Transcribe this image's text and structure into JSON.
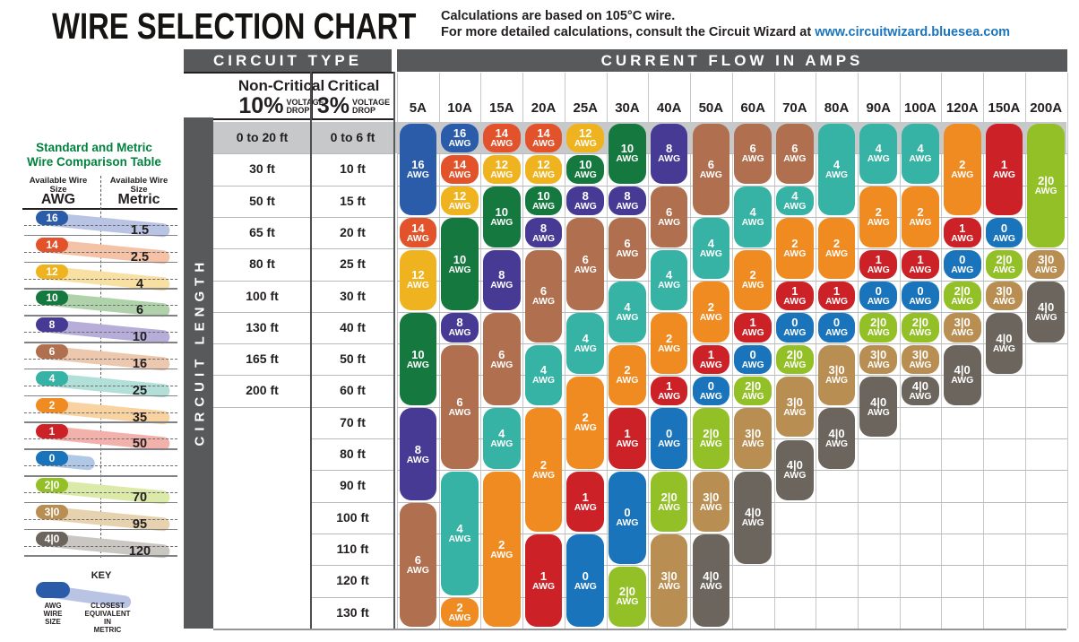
{
  "header": {
    "title": "WIRE SELECTION CHART",
    "subtitle_line1": "Calculations are based on 105°C wire.",
    "subtitle_line2_prefix": "For more detailed calculations, consult the Circuit Wizard at ",
    "subtitle_link": "www.circuitwizard.bluesea.com"
  },
  "sidebar": {
    "title_line1": "Standard and Metric",
    "title_line2": "Wire Comparison Table",
    "col1_header": "Available Wire Size",
    "col1_unit": "AWG",
    "col2_header": "Available Wire Size",
    "col2_unit": "Metric",
    "rows": [
      {
        "awg": "16",
        "metric": "1.5"
      },
      {
        "awg": "14",
        "metric": "2.5"
      },
      {
        "awg": "12",
        "metric": "4"
      },
      {
        "awg": "10",
        "metric": "6"
      },
      {
        "awg": "8",
        "metric": "10"
      },
      {
        "awg": "6",
        "metric": "16"
      },
      {
        "awg": "4",
        "metric": "25"
      },
      {
        "awg": "2",
        "metric": "35"
      },
      {
        "awg": "1",
        "metric": "50"
      },
      {
        "awg": "0",
        "metric": ""
      },
      {
        "awg": "2|0",
        "metric": "70"
      },
      {
        "awg": "3|0",
        "metric": "95"
      },
      {
        "awg": "4|0",
        "metric": "120"
      }
    ],
    "key": {
      "title": "KEY",
      "awg_label": "AWG WIRE SIZE",
      "metric_label": "CLOSEST EQUIVALENT IN METRIC"
    }
  },
  "table": {
    "circuit_type_header": "CIRCUIT TYPE",
    "current_flow_header": "CURRENT FLOW IN AMPS",
    "circuit_length_label": "CIRCUIT LENGTH",
    "non_critical": {
      "name": "Non-Critical",
      "percent": "10%",
      "drop_line1": "VOLTAGE",
      "drop_line2": "DROP"
    },
    "critical": {
      "name": "Critical",
      "percent": "3%",
      "drop_line1": "VOLTAGE",
      "drop_line2": "DROP"
    }
  },
  "colors": {
    "header_bar": "#58595b",
    "row1_band": "#c7c8ca",
    "link": "#1b75bc",
    "sidebar_title": "#00833e",
    "gauges": {
      "16": "#2a5caa",
      "14": "#e2532b",
      "12": "#efb320",
      "10": "#15793f",
      "8": "#473a94",
      "6": "#b06f4e",
      "4": "#36b3a4",
      "2": "#f08b21",
      "1": "#cd2128",
      "0": "#1a74bb",
      "2|0": "#93bf27",
      "3|0": "#b98e52",
      "4|0": "#6c655d"
    },
    "bands": {
      "16": "#b9c3e3",
      "14": "#f4c2a7",
      "12": "#f8dfa2",
      "10": "#afd2ab",
      "8": "#b6add8",
      "6": "#ecc8ae",
      "4": "#b2e0d8",
      "2": "#f9d2a2",
      "1": "#f2b2ab",
      "0": "#b0c8e6",
      "2|0": "#dbe9a9",
      "3|0": "#e6d2ae",
      "4|0": "#cac6c2"
    }
  },
  "chart_data": {
    "type": "table",
    "title": "Wire Selection Chart",
    "x_axis": "Current Flow in Amps",
    "y_axis": "Circuit Length",
    "cell_label_suffix": "AWG",
    "columns_amps": [
      "5A",
      "10A",
      "15A",
      "20A",
      "25A",
      "30A",
      "40A",
      "50A",
      "60A",
      "70A",
      "80A",
      "90A",
      "100A",
      "120A",
      "150A",
      "200A"
    ],
    "row_labels_non_critical_10pct": [
      "0 to 20 ft",
      "30 ft",
      "50 ft",
      "65 ft",
      "80 ft",
      "100 ft",
      "130 ft",
      "165 ft",
      "200 ft",
      "",
      "",
      "",
      "",
      "",
      "",
      ""
    ],
    "row_labels_critical_3pct": [
      "0 to 6 ft",
      "10 ft",
      "15 ft",
      "20 ft",
      "25 ft",
      "30 ft",
      "40 ft",
      "50 ft",
      "60 ft",
      "70 ft",
      "80 ft",
      "90 ft",
      "100 ft",
      "110 ft",
      "120 ft",
      "130 ft"
    ],
    "wire_gauge_spans_by_amp": {
      "5A": [
        {
          "awg": "16",
          "row_start": 1,
          "row_end": 3
        },
        {
          "awg": "14",
          "row_start": 4,
          "row_end": 4
        },
        {
          "awg": "12",
          "row_start": 5,
          "row_end": 6
        },
        {
          "awg": "10",
          "row_start": 7,
          "row_end": 9
        },
        {
          "awg": "8",
          "row_start": 10,
          "row_end": 12
        },
        {
          "awg": "6",
          "row_start": 13,
          "row_end": 16
        }
      ],
      "10A": [
        {
          "awg": "16",
          "row_start": 1,
          "row_end": 1
        },
        {
          "awg": "14",
          "row_start": 2,
          "row_end": 2
        },
        {
          "awg": "12",
          "row_start": 3,
          "row_end": 3
        },
        {
          "awg": "10",
          "row_start": 4,
          "row_end": 6
        },
        {
          "awg": "8",
          "row_start": 7,
          "row_end": 7
        },
        {
          "awg": "6",
          "row_start": 8,
          "row_end": 11
        },
        {
          "awg": "4",
          "row_start": 12,
          "row_end": 15
        },
        {
          "awg": "2",
          "row_start": 16,
          "row_end": 16
        }
      ],
      "15A": [
        {
          "awg": "14",
          "row_start": 1,
          "row_end": 1
        },
        {
          "awg": "12",
          "row_start": 2,
          "row_end": 2
        },
        {
          "awg": "10",
          "row_start": 3,
          "row_end": 4
        },
        {
          "awg": "8",
          "row_start": 5,
          "row_end": 6
        },
        {
          "awg": "6",
          "row_start": 7,
          "row_end": 9
        },
        {
          "awg": "4",
          "row_start": 10,
          "row_end": 11
        },
        {
          "awg": "2",
          "row_start": 12,
          "row_end": 16
        }
      ],
      "20A": [
        {
          "awg": "14",
          "row_start": 1,
          "row_end": 1
        },
        {
          "awg": "12",
          "row_start": 2,
          "row_end": 2
        },
        {
          "awg": "10",
          "row_start": 3,
          "row_end": 3
        },
        {
          "awg": "8",
          "row_start": 4,
          "row_end": 4
        },
        {
          "awg": "6",
          "row_start": 5,
          "row_end": 7
        },
        {
          "awg": "4",
          "row_start": 8,
          "row_end": 9
        },
        {
          "awg": "2",
          "row_start": 10,
          "row_end": 13
        },
        {
          "awg": "1",
          "row_start": 14,
          "row_end": 16
        }
      ],
      "25A": [
        {
          "awg": "12",
          "row_start": 1,
          "row_end": 1
        },
        {
          "awg": "10",
          "row_start": 2,
          "row_end": 2
        },
        {
          "awg": "8",
          "row_start": 3,
          "row_end": 3
        },
        {
          "awg": "6",
          "row_start": 4,
          "row_end": 6
        },
        {
          "awg": "4",
          "row_start": 7,
          "row_end": 8
        },
        {
          "awg": "2",
          "row_start": 9,
          "row_end": 11
        },
        {
          "awg": "1",
          "row_start": 12,
          "row_end": 13
        },
        {
          "awg": "0",
          "row_start": 14,
          "row_end": 16
        }
      ],
      "30A": [
        {
          "awg": "10",
          "row_start": 1,
          "row_end": 2
        },
        {
          "awg": "8",
          "row_start": 3,
          "row_end": 3
        },
        {
          "awg": "6",
          "row_start": 4,
          "row_end": 5
        },
        {
          "awg": "4",
          "row_start": 6,
          "row_end": 7
        },
        {
          "awg": "2",
          "row_start": 8,
          "row_end": 9
        },
        {
          "awg": "1",
          "row_start": 10,
          "row_end": 11
        },
        {
          "awg": "0",
          "row_start": 12,
          "row_end": 14
        },
        {
          "awg": "2|0",
          "row_start": 15,
          "row_end": 16
        }
      ],
      "40A": [
        {
          "awg": "8",
          "row_start": 1,
          "row_end": 2
        },
        {
          "awg": "6",
          "row_start": 3,
          "row_end": 4
        },
        {
          "awg": "4",
          "row_start": 5,
          "row_end": 6
        },
        {
          "awg": "2",
          "row_start": 7,
          "row_end": 8
        },
        {
          "awg": "1",
          "row_start": 9,
          "row_end": 9
        },
        {
          "awg": "0",
          "row_start": 10,
          "row_end": 11
        },
        {
          "awg": "2|0",
          "row_start": 12,
          "row_end": 13
        },
        {
          "awg": "3|0",
          "row_start": 14,
          "row_end": 16
        }
      ],
      "50A": [
        {
          "awg": "6",
          "row_start": 1,
          "row_end": 3
        },
        {
          "awg": "4",
          "row_start": 4,
          "row_end": 5
        },
        {
          "awg": "2",
          "row_start": 6,
          "row_end": 7
        },
        {
          "awg": "1",
          "row_start": 8,
          "row_end": 8
        },
        {
          "awg": "0",
          "row_start": 9,
          "row_end": 9
        },
        {
          "awg": "2|0",
          "row_start": 10,
          "row_end": 11
        },
        {
          "awg": "3|0",
          "row_start": 12,
          "row_end": 13
        },
        {
          "awg": "4|0",
          "row_start": 14,
          "row_end": 16
        }
      ],
      "60A": [
        {
          "awg": "6",
          "row_start": 1,
          "row_end": 2
        },
        {
          "awg": "4",
          "row_start": 3,
          "row_end": 4
        },
        {
          "awg": "2",
          "row_start": 5,
          "row_end": 6
        },
        {
          "awg": "1",
          "row_start": 7,
          "row_end": 7
        },
        {
          "awg": "0",
          "row_start": 8,
          "row_end": 8
        },
        {
          "awg": "2|0",
          "row_start": 9,
          "row_end": 9
        },
        {
          "awg": "3|0",
          "row_start": 10,
          "row_end": 11
        },
        {
          "awg": "4|0",
          "row_start": 12,
          "row_end": 14
        }
      ],
      "70A": [
        {
          "awg": "6",
          "row_start": 1,
          "row_end": 2
        },
        {
          "awg": "4",
          "row_start": 3,
          "row_end": 3
        },
        {
          "awg": "2",
          "row_start": 4,
          "row_end": 5
        },
        {
          "awg": "1",
          "row_start": 6,
          "row_end": 6
        },
        {
          "awg": "0",
          "row_start": 7,
          "row_end": 7
        },
        {
          "awg": "2|0",
          "row_start": 8,
          "row_end": 8
        },
        {
          "awg": "3|0",
          "row_start": 9,
          "row_end": 10
        },
        {
          "awg": "4|0",
          "row_start": 11,
          "row_end": 12
        }
      ],
      "80A": [
        {
          "awg": "4",
          "row_start": 1,
          "row_end": 3
        },
        {
          "awg": "2",
          "row_start": 4,
          "row_end": 5
        },
        {
          "awg": "1",
          "row_start": 6,
          "row_end": 6
        },
        {
          "awg": "0",
          "row_start": 7,
          "row_end": 7
        },
        {
          "awg": "3|0",
          "row_start": 8,
          "row_end": 9
        },
        {
          "awg": "4|0",
          "row_start": 10,
          "row_end": 11
        }
      ],
      "90A": [
        {
          "awg": "4",
          "row_start": 1,
          "row_end": 2
        },
        {
          "awg": "2",
          "row_start": 3,
          "row_end": 4
        },
        {
          "awg": "1",
          "row_start": 5,
          "row_end": 5
        },
        {
          "awg": "0",
          "row_start": 6,
          "row_end": 6
        },
        {
          "awg": "2|0",
          "row_start": 7,
          "row_end": 7
        },
        {
          "awg": "3|0",
          "row_start": 8,
          "row_end": 8
        },
        {
          "awg": "4|0",
          "row_start": 9,
          "row_end": 10
        }
      ],
      "100A": [
        {
          "awg": "4",
          "row_start": 1,
          "row_end": 2
        },
        {
          "awg": "2",
          "row_start": 3,
          "row_end": 4
        },
        {
          "awg": "1",
          "row_start": 5,
          "row_end": 5
        },
        {
          "awg": "0",
          "row_start": 6,
          "row_end": 6
        },
        {
          "awg": "2|0",
          "row_start": 7,
          "row_end": 7
        },
        {
          "awg": "3|0",
          "row_start": 8,
          "row_end": 8
        },
        {
          "awg": "4|0",
          "row_start": 9,
          "row_end": 9
        }
      ],
      "120A": [
        {
          "awg": "2",
          "row_start": 1,
          "row_end": 3
        },
        {
          "awg": "1",
          "row_start": 4,
          "row_end": 4
        },
        {
          "awg": "0",
          "row_start": 5,
          "row_end": 5
        },
        {
          "awg": "2|0",
          "row_start": 6,
          "row_end": 6
        },
        {
          "awg": "3|0",
          "row_start": 7,
          "row_end": 7
        },
        {
          "awg": "4|0",
          "row_start": 8,
          "row_end": 9
        }
      ],
      "150A": [
        {
          "awg": "1",
          "row_start": 1,
          "row_end": 3
        },
        {
          "awg": "0",
          "row_start": 4,
          "row_end": 4
        },
        {
          "awg": "2|0",
          "row_start": 5,
          "row_end": 5
        },
        {
          "awg": "3|0",
          "row_start": 6,
          "row_end": 6
        },
        {
          "awg": "4|0",
          "row_start": 7,
          "row_end": 8
        }
      ],
      "200A": [
        {
          "awg": "2|0",
          "row_start": 1,
          "row_end": 4
        },
        {
          "awg": "3|0",
          "row_start": 5,
          "row_end": 5
        },
        {
          "awg": "4|0",
          "row_start": 6,
          "row_end": 7
        }
      ]
    }
  }
}
